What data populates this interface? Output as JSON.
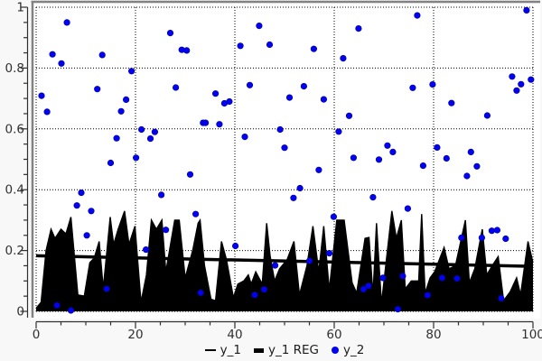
{
  "chart_data": {
    "type": "combo",
    "title": "",
    "xlabel": "",
    "ylabel": "",
    "x_axis": {
      "min": 0,
      "max": 100,
      "major_ticks": [
        0,
        20,
        40,
        60,
        80,
        100
      ],
      "tick_labels": [
        "0",
        "20",
        "40",
        "60",
        "80",
        "100"
      ],
      "minor_tick_step": 5
    },
    "y_axis": {
      "min": 0,
      "max": 1,
      "major_ticks": [
        0,
        0.2,
        0.4,
        0.6,
        0.8,
        1
      ],
      "tick_labels": [
        "0",
        "0.2",
        "0.4",
        "0.6",
        "0.8",
        "1"
      ],
      "minor_tick_step": 0.05
    },
    "grid": {
      "style": "dotted",
      "color": "#000000"
    },
    "legend": {
      "position": "bottom",
      "items": [
        {
          "label": "y_1",
          "marker": "thin-line",
          "color": "#000000"
        },
        {
          "label": "y_1 REG",
          "marker": "thick-line",
          "color": "#000000"
        },
        {
          "label": "y_2",
          "marker": "dot",
          "color": "#0202f0"
        }
      ]
    },
    "series": [
      {
        "name": "y_1",
        "type": "area",
        "color": "#000000",
        "points": [
          [
            0,
            0.01
          ],
          [
            1,
            0.03
          ],
          [
            2,
            0.2
          ],
          [
            3,
            0.27
          ],
          [
            3.8,
            0.24
          ],
          [
            5,
            0.27
          ],
          [
            6,
            0.255
          ],
          [
            7,
            0.31
          ],
          [
            8.4,
            0.054
          ],
          [
            9.7,
            0.05
          ],
          [
            10.8,
            0.16
          ],
          [
            11.7,
            0.175
          ],
          [
            12.7,
            0.23
          ],
          [
            13.5,
            0.075
          ],
          [
            14.9,
            0.31
          ],
          [
            15.6,
            0.22
          ],
          [
            16.5,
            0.27
          ],
          [
            17.8,
            0.33
          ],
          [
            18.7,
            0.22
          ],
          [
            19.9,
            0.28
          ],
          [
            21.1,
            0.03
          ],
          [
            22.2,
            0.12
          ],
          [
            23.2,
            0.3
          ],
          [
            24.2,
            0.27
          ],
          [
            25.3,
            0.3
          ],
          [
            26.1,
            0.13
          ],
          [
            27.9,
            0.3
          ],
          [
            28.8,
            0.3
          ],
          [
            30,
            0.11
          ],
          [
            31.5,
            0.2
          ],
          [
            32.6,
            0.29
          ],
          [
            33,
            0.3
          ],
          [
            33.9,
            0.15
          ],
          [
            35.2,
            0.04
          ],
          [
            36.1,
            0.035
          ],
          [
            37.3,
            0.23
          ],
          [
            38.3,
            0.17
          ],
          [
            39.7,
            0.045
          ],
          [
            40.6,
            0.09
          ],
          [
            41.8,
            0.1
          ],
          [
            42.7,
            0.12
          ],
          [
            43.3,
            0.09
          ],
          [
            44.2,
            0.13
          ],
          [
            45.5,
            0.09
          ],
          [
            46.4,
            0.29
          ],
          [
            47.1,
            0.18
          ],
          [
            48,
            0.1
          ],
          [
            49,
            0.14
          ],
          [
            50.5,
            0.17
          ],
          [
            51.9,
            0.23
          ],
          [
            53,
            0.054
          ],
          [
            54.5,
            0.15
          ],
          [
            55.7,
            0.28
          ],
          [
            56.9,
            0.13
          ],
          [
            57.9,
            0.28
          ],
          [
            59,
            0.07
          ],
          [
            60.5,
            0.3
          ],
          [
            62,
            0.3
          ],
          [
            63.6,
            0.094
          ],
          [
            64.5,
            0.06
          ],
          [
            66.2,
            0.24
          ],
          [
            67,
            0.243
          ],
          [
            67.8,
            0.054
          ],
          [
            68.5,
            0.29
          ],
          [
            69.5,
            0.025
          ],
          [
            71.6,
            0.33
          ],
          [
            72.5,
            0.24
          ],
          [
            73.5,
            0.3
          ],
          [
            74.3,
            0.074
          ],
          [
            75.5,
            0.1
          ],
          [
            77,
            0.1
          ],
          [
            77.6,
            0.32
          ],
          [
            78.3,
            0.06
          ],
          [
            79.3,
            0.11
          ],
          [
            80.2,
            0.13
          ],
          [
            82.1,
            0.21
          ],
          [
            83.1,
            0.14
          ],
          [
            84.4,
            0.15
          ],
          [
            86.4,
            0.3
          ],
          [
            87.2,
            0.094
          ],
          [
            88.3,
            0.14
          ],
          [
            89.8,
            0.27
          ],
          [
            90.7,
            0.12
          ],
          [
            91.8,
            0.15
          ],
          [
            93,
            0.18
          ],
          [
            94.1,
            0.035
          ],
          [
            95.4,
            0.064
          ],
          [
            96.7,
            0.11
          ],
          [
            97.5,
            0.054
          ],
          [
            99,
            0.23
          ],
          [
            100,
            0.16
          ]
        ]
      },
      {
        "name": "y_1 REG",
        "type": "line",
        "color": "#000000",
        "width": 3.5,
        "points": [
          [
            0,
            0.183
          ],
          [
            100,
            0.148
          ]
        ]
      },
      {
        "name": "y_2",
        "type": "scatter",
        "color": "#0202f0",
        "radius": 3.3,
        "points": [
          [
            6.2,
            0.95
          ],
          [
            27,
            0.915
          ],
          [
            3.3,
            0.845
          ],
          [
            13.3,
            0.843
          ],
          [
            29.3,
            0.86
          ],
          [
            30.3,
            0.858
          ],
          [
            5.1,
            0.815
          ],
          [
            19.2,
            0.79
          ],
          [
            12.3,
            0.731
          ],
          [
            28.1,
            0.736
          ],
          [
            1.1,
            0.709
          ],
          [
            18.1,
            0.696
          ],
          [
            2.2,
            0.656
          ],
          [
            17.1,
            0.658
          ],
          [
            33.6,
            0.62
          ],
          [
            21.2,
            0.598
          ],
          [
            23.9,
            0.59
          ],
          [
            23,
            0.568
          ],
          [
            16.2,
            0.569
          ],
          [
            20.1,
            0.505
          ],
          [
            44.9,
            0.939
          ],
          [
            64.9,
            0.93
          ],
          [
            41.1,
            0.873
          ],
          [
            47,
            0.877
          ],
          [
            55.9,
            0.863
          ],
          [
            61.8,
            0.832
          ],
          [
            43,
            0.744
          ],
          [
            53.9,
            0.74
          ],
          [
            36.1,
            0.716
          ],
          [
            51,
            0.703
          ],
          [
            57.9,
            0.697
          ],
          [
            37.9,
            0.684
          ],
          [
            38.9,
            0.69
          ],
          [
            63,
            0.643
          ],
          [
            34.1,
            0.62
          ],
          [
            36.9,
            0.615
          ],
          [
            60.9,
            0.591
          ],
          [
            49.1,
            0.598
          ],
          [
            42,
            0.574
          ],
          [
            50,
            0.538
          ],
          [
            63.9,
            0.505
          ],
          [
            76.7,
            0.973
          ],
          [
            98.7,
            0.99
          ],
          [
            95.8,
            0.772
          ],
          [
            99.6,
            0.762
          ],
          [
            97.6,
            0.747
          ],
          [
            96.7,
            0.726
          ],
          [
            79.8,
            0.746
          ],
          [
            75.8,
            0.735
          ],
          [
            83.6,
            0.685
          ],
          [
            90.8,
            0.644
          ],
          [
            70.7,
            0.545
          ],
          [
            71.8,
            0.524
          ],
          [
            80.7,
            0.539
          ],
          [
            87.5,
            0.524
          ],
          [
            82.6,
            0.503
          ],
          [
            15,
            0.488
          ],
          [
            31,
            0.45
          ],
          [
            9.1,
            0.39
          ],
          [
            25.2,
            0.383
          ],
          [
            8.2,
            0.348
          ],
          [
            11.1,
            0.33
          ],
          [
            32.1,
            0.32
          ],
          [
            26.1,
            0.268
          ],
          [
            10.2,
            0.25
          ],
          [
            22.1,
            0.203
          ],
          [
            14.2,
            0.074
          ],
          [
            33.1,
            0.061
          ],
          [
            4.2,
            0.02
          ],
          [
            7,
            0.003
          ],
          [
            56.9,
            0.465
          ],
          [
            53.1,
            0.405
          ],
          [
            51.8,
            0.373
          ],
          [
            67.8,
            0.375
          ],
          [
            59.9,
            0.311
          ],
          [
            40.1,
            0.215
          ],
          [
            59,
            0.191
          ],
          [
            55,
            0.166
          ],
          [
            48.1,
            0.151
          ],
          [
            45.9,
            0.072
          ],
          [
            44,
            0.054
          ],
          [
            65.9,
            0.073
          ],
          [
            66.9,
            0.084
          ],
          [
            69,
            0.499
          ],
          [
            77.9,
            0.479
          ],
          [
            88.7,
            0.477
          ],
          [
            86.7,
            0.445
          ],
          [
            74.8,
            0.338
          ],
          [
            85.6,
            0.242
          ],
          [
            91.7,
            0.265
          ],
          [
            92.8,
            0.267
          ],
          [
            94.5,
            0.239
          ],
          [
            89.7,
            0.242
          ],
          [
            69.8,
            0.11
          ],
          [
            73.8,
            0.116
          ],
          [
            81.7,
            0.11
          ],
          [
            84.7,
            0.108
          ],
          [
            78.8,
            0.053
          ],
          [
            93.6,
            0.043
          ],
          [
            72.8,
            0.007
          ]
        ]
      }
    ],
    "colors": {
      "background": "#f8f8f8",
      "plot_background": "#ffffff",
      "frame_bevel": "#828282",
      "axis": "#303030",
      "tick_label": "#303030"
    }
  }
}
